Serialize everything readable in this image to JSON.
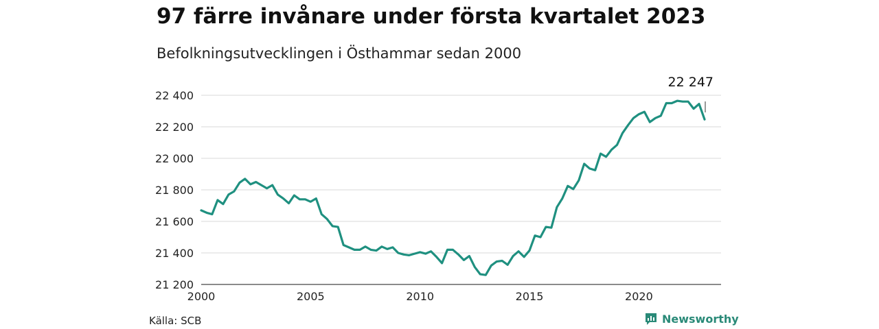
{
  "header": {
    "title": "97 färre invånare under första kvartalet 2023",
    "subtitle": "Befolkningsutvecklingen i Östhammar sedan 2000"
  },
  "footer": {
    "source": "Källa: SCB",
    "brand": "Newsworthy"
  },
  "colors": {
    "line": "#1f9080",
    "grid": "#d9d9d9",
    "brand": "#2a8a78"
  },
  "chart_data": {
    "type": "line",
    "title": "97 färre invånare under första kvartalet 2023",
    "subtitle": "Befolkningsutvecklingen i Östhammar sedan 2000",
    "x_ticks": [
      "2000",
      "2005",
      "2010",
      "2015",
      "2020"
    ],
    "y_ticks": [
      "21 200",
      "21 400",
      "21 600",
      "21 800",
      "22 000",
      "22 200",
      "22 400"
    ],
    "ylim": [
      21200,
      22450
    ],
    "xlim": [
      "2000-Q1",
      "2023-Q1"
    ],
    "grid": "horizontal",
    "end_label": "22 247",
    "series": [
      {
        "x": [
          "2000-Q1",
          "2000-Q2",
          "2000-Q3",
          "2000-Q4",
          "2001-Q1",
          "2001-Q2",
          "2001-Q3",
          "2001-Q4",
          "2002-Q1",
          "2002-Q2",
          "2002-Q3",
          "2002-Q4",
          "2003-Q1",
          "2003-Q2",
          "2003-Q3",
          "2003-Q4",
          "2004-Q1",
          "2004-Q2",
          "2004-Q3",
          "2004-Q4",
          "2005-Q1",
          "2005-Q2",
          "2005-Q3",
          "2005-Q4",
          "2006-Q1",
          "2006-Q2",
          "2006-Q3",
          "2006-Q4",
          "2007-Q1",
          "2007-Q2",
          "2007-Q3",
          "2007-Q4",
          "2008-Q1",
          "2008-Q2",
          "2008-Q3",
          "2008-Q4",
          "2009-Q1",
          "2009-Q2",
          "2009-Q3",
          "2009-Q4",
          "2010-Q1",
          "2010-Q2",
          "2010-Q3",
          "2010-Q4",
          "2011-Q1",
          "2011-Q2",
          "2011-Q3",
          "2011-Q4",
          "2012-Q1",
          "2012-Q2",
          "2012-Q3",
          "2012-Q4",
          "2013-Q1",
          "2013-Q2",
          "2013-Q3",
          "2013-Q4",
          "2014-Q1",
          "2014-Q2",
          "2014-Q3",
          "2014-Q4",
          "2015-Q1",
          "2015-Q2",
          "2015-Q3",
          "2015-Q4",
          "2016-Q1",
          "2016-Q2",
          "2016-Q3",
          "2016-Q4",
          "2017-Q1",
          "2017-Q2",
          "2017-Q3",
          "2017-Q4",
          "2018-Q1",
          "2018-Q2",
          "2018-Q3",
          "2018-Q4",
          "2019-Q1",
          "2019-Q2",
          "2019-Q3",
          "2019-Q4",
          "2020-Q1",
          "2020-Q2",
          "2020-Q3",
          "2020-Q4",
          "2021-Q1",
          "2021-Q2",
          "2021-Q3",
          "2021-Q4",
          "2022-Q1",
          "2022-Q2",
          "2022-Q3",
          "2022-Q4",
          "2023-Q1"
        ],
        "values": [
          21670,
          21655,
          21645,
          21735,
          21710,
          21770,
          21790,
          21845,
          21870,
          21835,
          21850,
          21830,
          21810,
          21830,
          21770,
          21745,
          21715,
          21765,
          21740,
          21740,
          21725,
          21745,
          21645,
          21615,
          21570,
          21565,
          21450,
          21435,
          21420,
          21420,
          21440,
          21420,
          21415,
          21440,
          21425,
          21435,
          21400,
          21390,
          21385,
          21395,
          21405,
          21395,
          21410,
          21375,
          21335,
          21420,
          21420,
          21390,
          21355,
          21380,
          21310,
          21265,
          21260,
          21320,
          21345,
          21350,
          21325,
          21380,
          21410,
          21375,
          21415,
          21510,
          21500,
          21565,
          21560,
          21690,
          21745,
          21825,
          21805,
          21860,
          21965,
          21935,
          21925,
          22030,
          22010,
          22055,
          22085,
          22160,
          22210,
          22255,
          22280,
          22295,
          22230,
          22255,
          22270,
          22350,
          22350,
          22365,
          22360,
          22360,
          22315,
          22345,
          22247
        ]
      }
    ]
  }
}
